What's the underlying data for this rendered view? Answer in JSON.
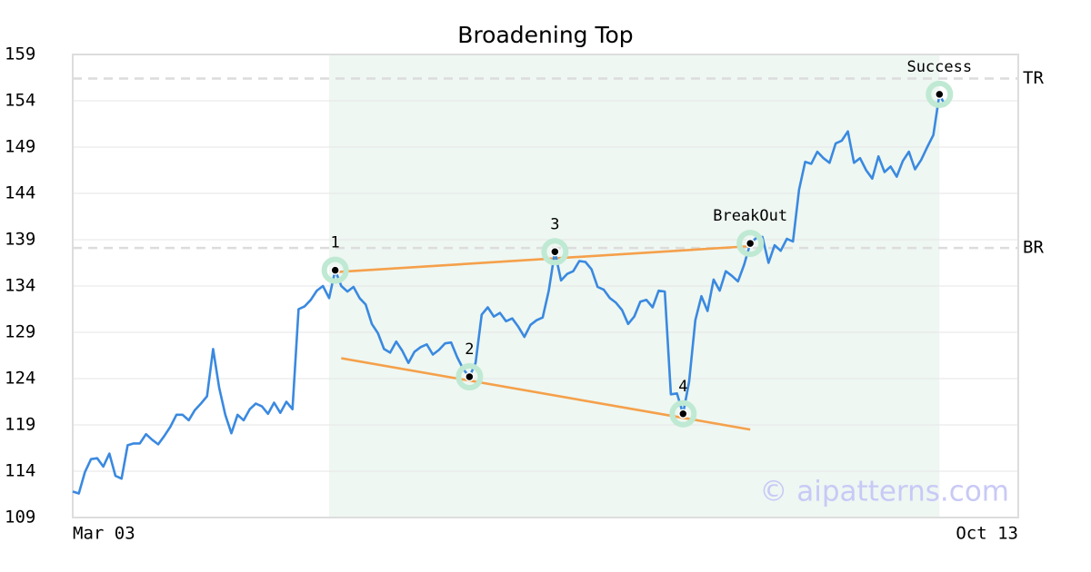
{
  "chart_data": {
    "type": "line",
    "title": "Broadening Top",
    "color": "#3a89e0",
    "categories": [
      "Mar 03",
      null,
      null,
      null,
      null,
      null,
      null,
      null,
      null,
      null,
      null,
      null,
      null,
      null,
      null,
      null,
      null,
      null,
      null,
      null,
      null,
      null,
      null,
      null,
      null,
      null,
      null,
      null,
      null,
      null,
      null,
      null,
      null,
      null,
      null,
      null,
      null,
      null,
      null,
      null,
      null,
      null,
      null,
      null,
      null,
      null,
      null,
      null,
      null,
      null,
      null,
      null,
      null,
      null,
      null,
      null,
      null,
      null,
      null,
      null,
      null,
      null,
      null,
      null,
      null,
      null,
      null,
      null,
      null,
      null,
      null,
      null,
      null,
      null,
      null,
      null,
      null,
      null,
      null,
      null,
      null,
      null,
      null,
      null,
      null,
      null,
      null,
      null,
      null,
      null,
      null,
      null,
      null,
      null,
      null,
      null,
      null,
      null,
      null,
      null,
      null,
      null,
      null,
      null,
      null,
      null,
      null,
      null,
      null,
      null,
      null,
      null,
      null,
      null,
      null,
      null,
      null,
      null,
      null,
      null,
      null,
      null,
      null,
      null,
      null,
      null,
      null,
      null,
      null,
      null,
      null,
      null,
      null,
      null,
      null,
      null,
      null,
      null,
      null,
      null,
      null,
      null,
      null,
      "Oct 13"
    ],
    "values": [
      111.8,
      111.6,
      113.9,
      115.3,
      115.4,
      114.5,
      115.9,
      113.5,
      113.2,
      116.8,
      117.0,
      117.0,
      118.0,
      117.4,
      116.9,
      117.8,
      118.8,
      120.1,
      120.1,
      119.5,
      120.6,
      121.3,
      122.1,
      127.2,
      123.0,
      120.1,
      118.1,
      120.1,
      119.5,
      120.7,
      121.3,
      121.0,
      120.2,
      121.4,
      120.3,
      121.5,
      120.7,
      131.5,
      131.8,
      132.5,
      133.5,
      134.0,
      132.7,
      135.7,
      134.0,
      133.4,
      133.9,
      132.7,
      132.0,
      129.9,
      128.9,
      127.2,
      126.8,
      128.0,
      127.0,
      125.7,
      126.9,
      127.4,
      127.7,
      126.6,
      127.1,
      127.8,
      127.9,
      126.3,
      125.0,
      124.2,
      125.7,
      130.9,
      131.7,
      130.7,
      131.1,
      130.2,
      130.5,
      129.6,
      128.5,
      129.8,
      130.3,
      130.6,
      133.5,
      137.7,
      134.6,
      135.3,
      135.6,
      136.7,
      136.6,
      135.8,
      133.9,
      133.6,
      132.7,
      132.2,
      131.4,
      129.9,
      130.7,
      132.3,
      132.5,
      131.7,
      133.5,
      133.4,
      122.3,
      122.4,
      120.2,
      123.7,
      130.3,
      132.9,
      131.3,
      134.7,
      133.5,
      135.6,
      135.1,
      134.5,
      136.3,
      138.6,
      139.2,
      139.3,
      136.5,
      138.4,
      137.8,
      139.1,
      138.8,
      144.4,
      147.4,
      147.2,
      148.5,
      147.8,
      147.3,
      149.4,
      149.7,
      150.7,
      147.3,
      147.8,
      146.5,
      145.6,
      148.0,
      146.3,
      146.9,
      145.8,
      147.5,
      148.5,
      146.6,
      147.6,
      149.0,
      150.3,
      154.7,
      153.4
    ],
    "ylim": [
      109,
      159
    ],
    "yticks": [
      109,
      114,
      119,
      124,
      129,
      134,
      139,
      144,
      149,
      154,
      159
    ],
    "grid": true,
    "highlight_range": [
      42,
      142
    ],
    "levels": [
      {
        "label": "TR",
        "value": 156.4
      },
      {
        "label": "BR",
        "value": 138.1
      }
    ],
    "trendlines": [
      {
        "x": [
          43,
          111
        ],
        "values": [
          135.5,
          138.3
        ],
        "color": "#f5a04a"
      },
      {
        "x": [
          44,
          111
        ],
        "values": [
          126.2,
          118.5
        ],
        "color": "#f5a04a"
      }
    ],
    "annotations": [
      {
        "label": "1",
        "x": 43
      },
      {
        "label": "2",
        "x": 65
      },
      {
        "label": "3",
        "x": 79
      },
      {
        "label": "4",
        "x": 100
      },
      {
        "label": "BreakOut",
        "x": 111
      },
      {
        "label": "Success",
        "x": 142
      }
    ],
    "watermark": "© aipatterns.com"
  }
}
